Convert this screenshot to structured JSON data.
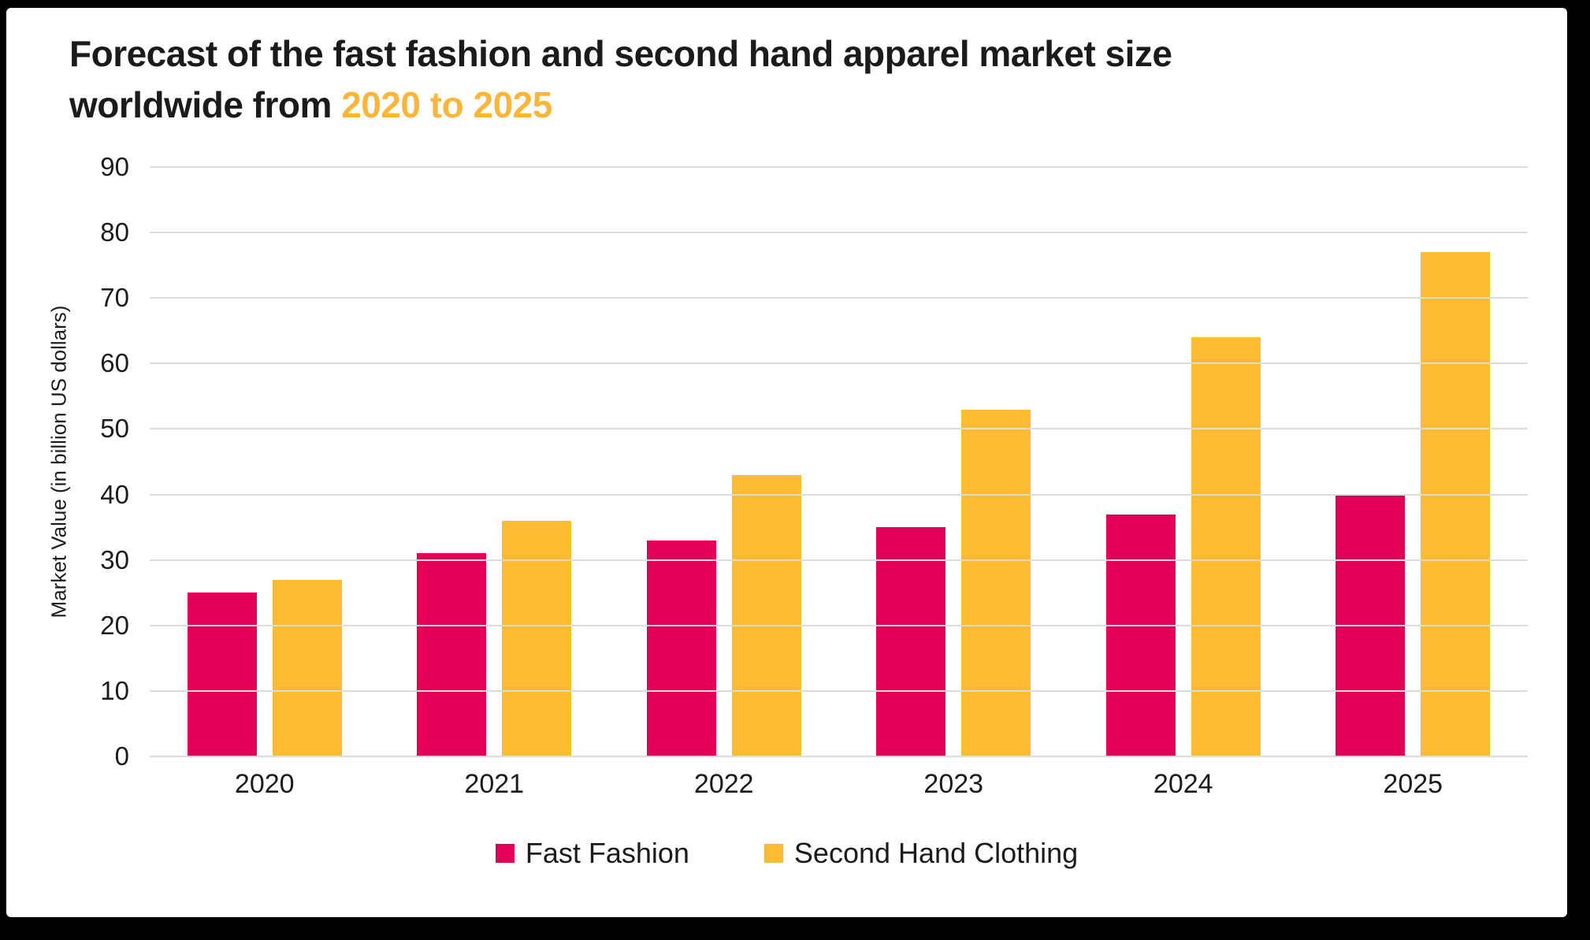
{
  "title": {
    "line1": "Forecast of the fast fashion and second hand apparel market size",
    "line2_prefix": "worldwide from ",
    "line2_accent": "2020 to 2025",
    "accent_color": "#F9B63A"
  },
  "chart_data": {
    "type": "bar",
    "title": "Forecast of the fast fashion and second hand apparel market size worldwide from 2020 to 2025",
    "categories": [
      "2020",
      "2021",
      "2022",
      "2023",
      "2024",
      "2025"
    ],
    "series": [
      {
        "name": "Fast Fashion",
        "color": "#E50057",
        "values": [
          25,
          31,
          33,
          35,
          37,
          40
        ]
      },
      {
        "name": "Second Hand Clothing",
        "color": "#FBBC34",
        "values": [
          27,
          36,
          43,
          53,
          64,
          77
        ]
      }
    ],
    "xlabel": "",
    "ylabel": "Market Value (in billion US dollars)",
    "ylim": [
      0,
      90
    ],
    "ytick_step": 10,
    "grid": true,
    "gridline_color": "#dcdcdc",
    "legend_position": "bottom"
  }
}
